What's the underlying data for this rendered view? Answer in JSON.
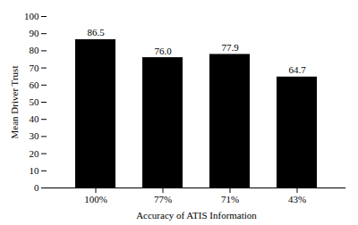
{
  "chart_data": {
    "type": "bar",
    "categories": [
      "100%",
      "77%",
      "71%",
      "43%"
    ],
    "values": [
      86.5,
      76.0,
      77.9,
      64.7
    ],
    "value_labels": [
      "86.5",
      "76.0",
      "77.9",
      "64.7"
    ],
    "data_labels": true,
    "xlabel": "Accuracy of ATIS Information",
    "ylabel": "Mean Driver Trust",
    "ylim": [
      0,
      100
    ],
    "yticks": [
      0,
      10,
      20,
      30,
      40,
      50,
      60,
      70,
      80,
      90,
      100
    ],
    "grid": false
  }
}
